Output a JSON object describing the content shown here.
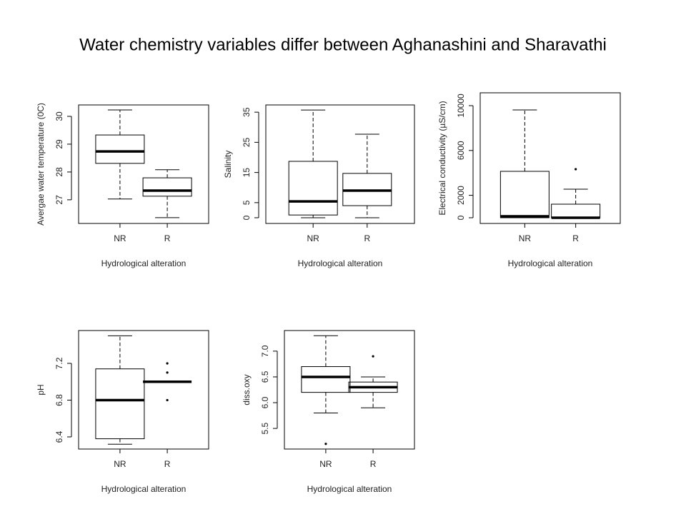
{
  "title": "Water chemistry variables differ between Aghanashini and Sharavathi",
  "chart_data": [
    {
      "type": "box",
      "ylabel": "Avergae water temperature (0C)",
      "xlabel": "Hydrological alteration",
      "categories": [
        "NR",
        "R"
      ],
      "ylim": [
        26.15,
        30.41
      ],
      "yticks": [
        27,
        28,
        29,
        30
      ],
      "boxes": [
        {
          "min": 27.03,
          "q1": 28.31,
          "median": 28.74,
          "q3": 29.33,
          "max": 30.23,
          "outliers": []
        },
        {
          "min": 26.36,
          "q1": 27.13,
          "median": 27.33,
          "q3": 27.79,
          "max": 28.08,
          "outliers": []
        }
      ]
    },
    {
      "type": "box",
      "ylabel": "Salinity",
      "xlabel": "Hydrological alteration",
      "categories": [
        "NR",
        "R"
      ],
      "ylim": [
        -1.9,
        37.4
      ],
      "yticks": [
        0,
        5,
        15,
        25,
        35
      ],
      "boxes": [
        {
          "min": 0,
          "q1": 0.9,
          "median": 5.4,
          "q3": 18.7,
          "max": 35.7,
          "outliers": []
        },
        {
          "min": 0,
          "q1": 4,
          "median": 9,
          "q3": 14.7,
          "max": 27.7,
          "outliers": []
        }
      ]
    },
    {
      "type": "box",
      "ylabel": "Electrical conductivity (µS/cm)",
      "xlabel": "Hydrological alteration",
      "categories": [
        "NR",
        "R"
      ],
      "ylim": [
        -510,
        11146
      ],
      "yticks": [
        0,
        2000,
        6000,
        10000
      ],
      "boxes": [
        {
          "min": 0,
          "q1": 0,
          "median": 127,
          "q3": 4140,
          "max": 9618,
          "outliers": []
        },
        {
          "min": 0,
          "q1": 0,
          "median": 0,
          "q3": 1210,
          "max": 2548,
          "outliers": [
            4331
          ]
        }
      ]
    },
    {
      "type": "box",
      "ylabel": "pH",
      "xlabel": "Hydrological alteration",
      "categories": [
        "NR",
        "R"
      ],
      "ylim": [
        6.268,
        7.557
      ],
      "yticks": [
        6.4,
        6.8,
        7.2
      ],
      "boxes": [
        {
          "min": 6.32,
          "q1": 6.38,
          "median": 6.8,
          "q3": 7.14,
          "max": 7.5,
          "outliers": []
        },
        {
          "min": 7,
          "q1": 7,
          "median": 7,
          "q3": 7,
          "max": 7,
          "outliers": [
            7.2,
            7.1,
            6.8
          ]
        }
      ]
    },
    {
      "type": "box",
      "ylabel": "diss.oxy",
      "xlabel": "Hydrological alteration",
      "categories": [
        "NR",
        "R"
      ],
      "ylim": [
        5.1,
        7.4
      ],
      "yticks": [
        5.5,
        {
          "value": 6,
          "label": "6.0"
        },
        6.5,
        {
          "value": 7,
          "label": "7.0"
        }
      ],
      "boxes": [
        {
          "min": 5.8,
          "q1": 6.2,
          "median": 6.5,
          "q3": 6.7,
          "max": 7.3,
          "outliers": [
            5.2
          ]
        },
        {
          "min": 5.9,
          "q1": 6.2,
          "median": 6.3,
          "q3": 6.4,
          "max": 6.5,
          "outliers": [
            6.9
          ]
        }
      ]
    }
  ]
}
